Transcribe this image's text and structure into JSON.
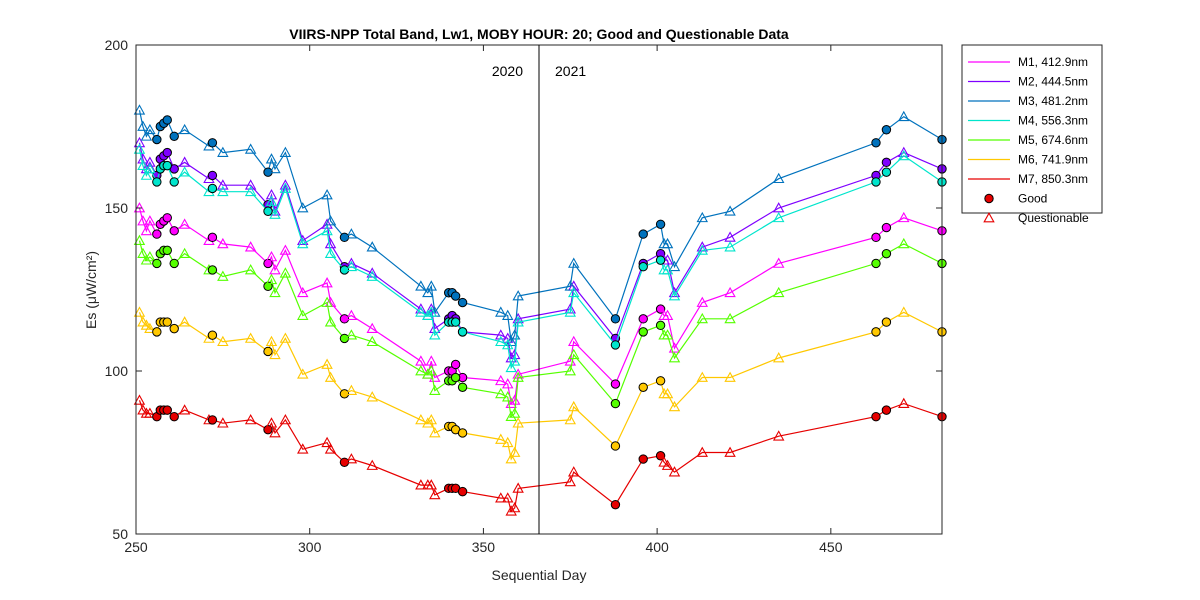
{
  "chart_data": {
    "type": "line",
    "title": "VIIRS-NPP Total Band,  Lw1, MOBY HOUR: 20;  Good and Questionable Data",
    "xlabel": "Sequential Day",
    "ylabel": "Es (μW/cm²)",
    "xlim": [
      250,
      482
    ],
    "ylim": [
      50,
      200
    ],
    "xticks": [
      250,
      300,
      350,
      400,
      450
    ],
    "yticks": [
      50,
      100,
      150,
      200
    ],
    "grid": false,
    "legend_position": "outside-top-right",
    "annotations": [
      {
        "text": "2020"
      },
      {
        "text": "2021"
      }
    ],
    "divider_x": 366,
    "x": [
      251,
      252,
      253,
      254,
      256,
      257,
      258,
      259,
      261,
      264,
      271,
      272,
      275,
      283,
      288,
      289,
      290,
      293,
      298,
      305,
      306,
      310,
      312,
      318,
      332,
      334,
      335,
      336,
      340,
      341,
      342,
      344,
      355,
      357,
      358,
      359,
      360,
      375,
      376,
      388,
      396,
      401,
      402,
      403,
      405,
      413,
      421,
      435,
      463,
      466,
      471,
      482
    ],
    "series": [
      {
        "name": "M1, 412.9nm",
        "color": "#ff00ff",
        "y": [
          150,
          146,
          143,
          146,
          142,
          145,
          146,
          147,
          143,
          145,
          140,
          141,
          139,
          138,
          133,
          135,
          131,
          137,
          124,
          127,
          121,
          116,
          117,
          113,
          103,
          99,
          103,
          98,
          100,
          100,
          102,
          98,
          97,
          96,
          90,
          91,
          99,
          103,
          109,
          96,
          116,
          119,
          117,
          117,
          107,
          121,
          124,
          133,
          141,
          144,
          147,
          143
        ],
        "quality": [
          "q",
          "q",
          "q",
          "q",
          "g",
          "g",
          "g",
          "g",
          "g",
          "q",
          "q",
          "g",
          "q",
          "q",
          "g",
          "q",
          "q",
          "q",
          "q",
          "q",
          "q",
          "g",
          "q",
          "q",
          "q",
          "q",
          "q",
          "q",
          "g",
          "g",
          "g",
          "g",
          "q",
          "q",
          "q",
          "q",
          "q",
          "q",
          "q",
          "g",
          "g",
          "g",
          "q",
          "q",
          "q",
          "q",
          "q",
          "q",
          "g",
          "g",
          "q",
          "g"
        ]
      },
      {
        "name": "M2, 444.5nm",
        "color": "#7f00ff",
        "y": [
          170,
          165,
          162,
          164,
          160,
          165,
          166,
          167,
          162,
          164,
          159,
          160,
          157,
          157,
          151,
          154,
          149,
          157,
          140,
          145,
          139,
          132,
          133,
          130,
          119,
          117,
          119,
          113,
          116,
          117,
          116,
          112,
          111,
          110,
          104,
          105,
          116,
          119,
          126,
          110,
          133,
          136,
          134,
          134,
          124,
          138,
          141,
          150,
          160,
          164,
          167,
          162
        ],
        "quality": [
          "q",
          "q",
          "q",
          "q",
          "g",
          "g",
          "g",
          "g",
          "g",
          "q",
          "q",
          "g",
          "q",
          "q",
          "g",
          "q",
          "q",
          "q",
          "q",
          "q",
          "q",
          "g",
          "q",
          "q",
          "q",
          "q",
          "q",
          "q",
          "g",
          "g",
          "g",
          "g",
          "q",
          "q",
          "q",
          "q",
          "q",
          "q",
          "q",
          "g",
          "g",
          "g",
          "q",
          "q",
          "q",
          "q",
          "q",
          "q",
          "g",
          "g",
          "q",
          "g"
        ]
      },
      {
        "name": "M3, 481.2nm",
        "color": "#0072bd",
        "y": [
          180,
          175,
          172,
          174,
          171,
          175,
          176,
          177,
          172,
          174,
          169,
          170,
          167,
          168,
          161,
          165,
          162,
          167,
          150,
          154,
          146,
          141,
          142,
          138,
          126,
          124,
          126,
          118,
          124,
          124,
          123,
          121,
          118,
          117,
          109,
          111,
          123,
          126,
          133,
          116,
          142,
          145,
          139,
          139,
          132,
          147,
          149,
          159,
          170,
          174,
          178,
          171
        ],
        "quality": [
          "q",
          "q",
          "q",
          "q",
          "g",
          "g",
          "g",
          "g",
          "g",
          "q",
          "q",
          "g",
          "q",
          "q",
          "g",
          "q",
          "q",
          "q",
          "q",
          "q",
          "q",
          "g",
          "q",
          "q",
          "q",
          "q",
          "q",
          "q",
          "g",
          "g",
          "g",
          "g",
          "q",
          "q",
          "q",
          "q",
          "q",
          "q",
          "q",
          "g",
          "g",
          "g",
          "q",
          "q",
          "q",
          "q",
          "q",
          "q",
          "g",
          "g",
          "q",
          "g"
        ]
      },
      {
        "name": "M4, 556.3nm",
        "color": "#00e5cc",
        "y": [
          168,
          163,
          160,
          162,
          158,
          162,
          163,
          163,
          158,
          161,
          155,
          156,
          155,
          155,
          149,
          152,
          148,
          156,
          139,
          143,
          136,
          131,
          132,
          129,
          118,
          117,
          118,
          111,
          115,
          115,
          115,
          112,
          109,
          108,
          101,
          103,
          115,
          118,
          124,
          108,
          132,
          134,
          131,
          131,
          123,
          137,
          138,
          147,
          158,
          161,
          166,
          158
        ],
        "quality": [
          "q",
          "q",
          "q",
          "q",
          "g",
          "g",
          "g",
          "g",
          "g",
          "q",
          "q",
          "g",
          "q",
          "q",
          "g",
          "q",
          "q",
          "q",
          "q",
          "q",
          "q",
          "g",
          "q",
          "q",
          "q",
          "q",
          "q",
          "q",
          "g",
          "g",
          "g",
          "g",
          "q",
          "q",
          "q",
          "q",
          "q",
          "q",
          "q",
          "g",
          "g",
          "g",
          "q",
          "q",
          "q",
          "q",
          "q",
          "q",
          "g",
          "g",
          "q",
          "g"
        ]
      },
      {
        "name": "M5, 674.6nm",
        "color": "#55ff00",
        "y": [
          140,
          136,
          134,
          135,
          133,
          136,
          137,
          137,
          133,
          136,
          131,
          131,
          129,
          131,
          126,
          128,
          124,
          130,
          117,
          121,
          115,
          110,
          111,
          109,
          100,
          99,
          100,
          94,
          97,
          97,
          98,
          95,
          93,
          92,
          86,
          87,
          98,
          100,
          105,
          90,
          112,
          114,
          111,
          111,
          104,
          116,
          116,
          124,
          133,
          136,
          139,
          133
        ],
        "quality": [
          "q",
          "q",
          "q",
          "q",
          "g",
          "g",
          "g",
          "g",
          "g",
          "q",
          "q",
          "g",
          "q",
          "q",
          "g",
          "q",
          "q",
          "q",
          "q",
          "q",
          "q",
          "g",
          "q",
          "q",
          "q",
          "q",
          "q",
          "q",
          "g",
          "g",
          "g",
          "g",
          "q",
          "q",
          "q",
          "q",
          "q",
          "q",
          "q",
          "g",
          "g",
          "g",
          "q",
          "q",
          "q",
          "q",
          "q",
          "q",
          "g",
          "g",
          "q",
          "g"
        ]
      },
      {
        "name": "M6, 741.9nm",
        "color": "#ffc800",
        "y": [
          118,
          115,
          114,
          113,
          112,
          115,
          115,
          115,
          113,
          115,
          110,
          111,
          109,
          110,
          106,
          109,
          105,
          110,
          99,
          102,
          98,
          93,
          94,
          92,
          85,
          84,
          85,
          81,
          83,
          83,
          82,
          81,
          79,
          78,
          73,
          75,
          84,
          85,
          89,
          77,
          95,
          97,
          93,
          93,
          89,
          98,
          98,
          104,
          112,
          115,
          118,
          112
        ],
        "quality": [
          "q",
          "q",
          "q",
          "q",
          "g",
          "g",
          "g",
          "g",
          "g",
          "q",
          "q",
          "g",
          "q",
          "q",
          "g",
          "q",
          "q",
          "q",
          "q",
          "q",
          "q",
          "g",
          "q",
          "q",
          "q",
          "q",
          "q",
          "q",
          "g",
          "g",
          "g",
          "g",
          "q",
          "q",
          "q",
          "q",
          "q",
          "q",
          "q",
          "g",
          "g",
          "g",
          "q",
          "q",
          "q",
          "q",
          "q",
          "q",
          "g",
          "g",
          "q",
          "g"
        ]
      },
      {
        "name": "M7, 850.3nm",
        "color": "#e60000",
        "y": [
          91,
          88,
          87,
          87,
          86,
          88,
          88,
          88,
          86,
          88,
          85,
          85,
          84,
          85,
          82,
          84,
          81,
          85,
          76,
          78,
          76,
          72,
          73,
          71,
          65,
          65,
          65,
          62,
          64,
          64,
          64,
          63,
          61,
          61,
          57,
          58,
          64,
          66,
          69,
          59,
          73,
          74,
          72,
          71,
          69,
          75,
          75,
          80,
          86,
          88,
          90,
          86
        ],
        "quality": [
          "q",
          "q",
          "q",
          "q",
          "g",
          "g",
          "g",
          "g",
          "g",
          "q",
          "q",
          "g",
          "q",
          "q",
          "g",
          "q",
          "q",
          "q",
          "q",
          "q",
          "q",
          "g",
          "q",
          "q",
          "q",
          "q",
          "q",
          "q",
          "g",
          "g",
          "g",
          "g",
          "q",
          "q",
          "q",
          "q",
          "q",
          "q",
          "q",
          "g",
          "g",
          "g",
          "q",
          "q",
          "q",
          "q",
          "q",
          "q",
          "g",
          "g",
          "q",
          "g"
        ]
      }
    ],
    "legend": {
      "good_label": "Good",
      "questionable_label": "Questionable",
      "good_color": "#e60000",
      "questionable_color": "#e60000"
    }
  }
}
